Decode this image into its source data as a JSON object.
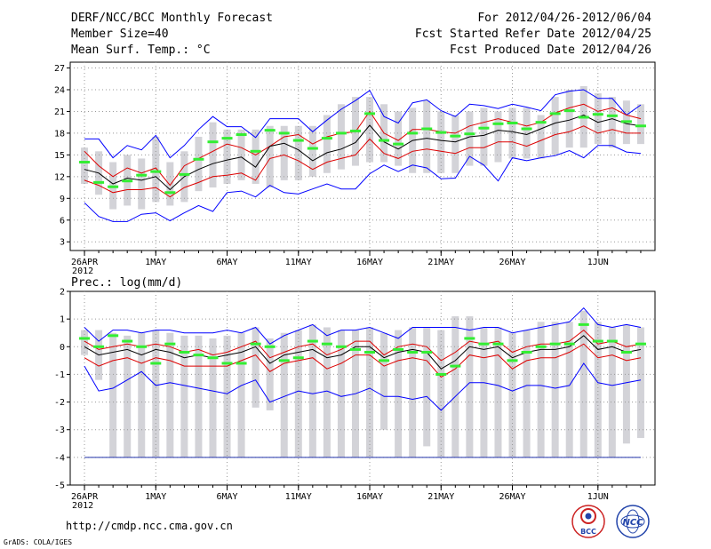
{
  "header": {
    "title": "DERF/NCC/BCC Monthly Forecast",
    "member_size": "Member Size=40",
    "variable": "Mean Surf. Temp.: °C",
    "period": "For 2012/04/26-2012/06/04",
    "start_date": "Fcst Started Refer Date 2012/04/25",
    "produced_date": "Fcst Produced Date 2012/04/26"
  },
  "footer": {
    "url": "http://cmdp.ncc.cma.gov.cn",
    "credit": "GrADS: COLA/IGES",
    "logo1_text": "BCC",
    "logo2_text": "NCC"
  },
  "colors": {
    "max_min": "#0000ff",
    "spread": "#dd0000",
    "mean": "#000000",
    "members_bar": "#d3d3d8",
    "median": "#33ee33",
    "grid": "#999999"
  },
  "chart_data": [
    {
      "type": "line",
      "title": "Mean Surf. Temp.: °C",
      "x_ticks": [
        {
          "day": 0,
          "label": "26APR"
        },
        {
          "day": 5,
          "label": "1MAY"
        },
        {
          "day": 10,
          "label": "6MAY"
        },
        {
          "day": 15,
          "label": "11MAY"
        },
        {
          "day": 20,
          "label": "16MAY"
        },
        {
          "day": 25,
          "label": "21MAY"
        },
        {
          "day": 30,
          "label": "26MAY"
        },
        {
          "day": 36,
          "label": "1JUN"
        }
      ],
      "year_label": "2012",
      "xlim": [
        -1,
        40
      ],
      "ylim": [
        1.8,
        27.8
      ],
      "y_ticks": [
        3,
        6,
        9,
        12,
        15,
        18,
        21,
        24,
        27
      ],
      "y_labels": [
        "3",
        "6",
        "9",
        "12",
        "15",
        "18",
        "21",
        "24",
        "27"
      ],
      "days": [
        0,
        1,
        2,
        3,
        4,
        5,
        6,
        7,
        8,
        9,
        10,
        11,
        12,
        13,
        14,
        15,
        16,
        17,
        18,
        19,
        20,
        21,
        22,
        23,
        24,
        25,
        26,
        27,
        28,
        29,
        30,
        31,
        32,
        33,
        34,
        35,
        36,
        37,
        38,
        39
      ],
      "series": [
        {
          "name": "max",
          "color_key": "max_min",
          "values": [
            17.2,
            17.2,
            14.6,
            16.3,
            15.7,
            17.7,
            14.6,
            16.3,
            18.5,
            20.3,
            18.9,
            18.9,
            17.4,
            20.0,
            20.0,
            20.0,
            18.2,
            19.8,
            21.3,
            22.5,
            23.9,
            20.3,
            19.4,
            22.2,
            22.6,
            21.1,
            20.3,
            22.0,
            21.8,
            21.4,
            22.0,
            21.6,
            21.1,
            23.3,
            23.8,
            24.0,
            22.8,
            22.8,
            20.5,
            21.9
          ]
        },
        {
          "name": "spread_upper",
          "color_key": "spread",
          "values": [
            15.5,
            13.5,
            12.0,
            13.2,
            12.5,
            13.2,
            10.8,
            13.5,
            14.5,
            15.5,
            16.5,
            16.0,
            15.0,
            16.2,
            17.5,
            17.8,
            16.5,
            17.5,
            18.0,
            18.2,
            21.0,
            18.0,
            17.0,
            18.5,
            18.5,
            18.2,
            18.0,
            19.0,
            19.5,
            20.0,
            19.5,
            19.0,
            19.5,
            20.8,
            21.5,
            22.0,
            21.0,
            21.5,
            20.5,
            20.0
          ]
        },
        {
          "name": "mean",
          "color_key": "mean",
          "values": [
            13.0,
            12.5,
            11.0,
            11.8,
            11.5,
            12.0,
            10.2,
            12.0,
            13.0,
            13.8,
            14.3,
            14.7,
            13.3,
            16.2,
            16.6,
            15.7,
            14.2,
            15.3,
            15.8,
            16.7,
            19.1,
            16.8,
            15.8,
            17.0,
            17.3,
            17.0,
            16.8,
            17.5,
            17.7,
            18.4,
            18.2,
            17.8,
            18.6,
            19.4,
            19.8,
            20.5,
            19.5,
            20.0,
            19.3,
            19.0
          ]
        },
        {
          "name": "spread_lower",
          "color_key": "spread",
          "values": [
            11.5,
            10.8,
            9.8,
            10.2,
            10.2,
            10.5,
            9.2,
            10.5,
            11.2,
            12.0,
            12.2,
            12.5,
            11.5,
            14.5,
            15.0,
            14.2,
            13.0,
            14.0,
            14.5,
            15.0,
            17.2,
            15.2,
            14.5,
            15.5,
            15.8,
            15.5,
            15.2,
            16.0,
            16.0,
            16.8,
            16.8,
            16.2,
            17.0,
            17.8,
            18.2,
            19.0,
            18.0,
            18.5,
            18.0,
            18.0
          ]
        },
        {
          "name": "min",
          "color_key": "max_min",
          "values": [
            8.4,
            6.5,
            5.8,
            5.8,
            6.8,
            7.0,
            5.9,
            7.0,
            8.0,
            7.2,
            9.8,
            10.0,
            9.2,
            10.8,
            9.8,
            9.6,
            10.3,
            11.0,
            10.3,
            10.3,
            12.4,
            13.6,
            12.7,
            13.6,
            13.2,
            11.7,
            11.8,
            14.8,
            13.6,
            11.4,
            14.6,
            14.2,
            14.6,
            14.9,
            15.6,
            14.6,
            16.3,
            16.3,
            15.4,
            15.2
          ]
        }
      ],
      "bars_low": [
        11.0,
        9.5,
        7.5,
        8.0,
        7.5,
        8.5,
        8.0,
        8.5,
        10.0,
        10.5,
        11.0,
        11.5,
        11.0,
        10.5,
        11.5,
        11.5,
        12.0,
        12.5,
        13.0,
        13.5,
        14.0,
        14.0,
        13.5,
        12.5,
        12.5,
        12.5,
        12.5,
        13.5,
        13.5,
        14.0,
        14.5,
        14.5,
        14.5,
        15.0,
        16.0,
        16.0,
        16.5,
        16.0,
        16.5,
        16.5
      ],
      "bars_high": [
        16.0,
        15.5,
        14.0,
        15.0,
        14.5,
        17.5,
        14.0,
        15.5,
        17.5,
        19.5,
        18.5,
        18.5,
        18.5,
        19.0,
        19.0,
        19.0,
        19.0,
        20.5,
        22.0,
        23.0,
        23.0,
        22.0,
        21.0,
        21.5,
        22.5,
        21.0,
        20.5,
        21.0,
        21.5,
        21.0,
        21.5,
        21.5,
        20.5,
        23.0,
        24.0,
        24.5,
        23.5,
        23.0,
        22.5,
        22.0
      ],
      "median": [
        14.0,
        11.2,
        10.6,
        11.4,
        12.2,
        12.7,
        9.8,
        12.3,
        14.4,
        16.8,
        17.3,
        17.8,
        15.5,
        18.4,
        18.0,
        17.0,
        15.9,
        17.3,
        18.0,
        18.3,
        20.7,
        17.0,
        16.5,
        18.0,
        18.6,
        18.1,
        17.6,
        17.9,
        18.7,
        19.3,
        19.4,
        18.6,
        19.5,
        20.7,
        21.1,
        20.2,
        20.6,
        20.4,
        19.6,
        19.0
      ]
    },
    {
      "type": "line",
      "title": "Prec.: log(mm/d)",
      "x_ticks": [
        {
          "day": 0,
          "label": "26APR"
        },
        {
          "day": 5,
          "label": "1MAY"
        },
        {
          "day": 10,
          "label": "6MAY"
        },
        {
          "day": 15,
          "label": "11MAY"
        },
        {
          "day": 20,
          "label": "16MAY"
        },
        {
          "day": 25,
          "label": "21MAY"
        },
        {
          "day": 30,
          "label": "26MAY"
        },
        {
          "day": 36,
          "label": "1JUN"
        }
      ],
      "year_label": "2012",
      "xlim": [
        -1,
        40
      ],
      "ylim": [
        -5,
        2
      ],
      "y_ticks": [
        -5,
        -4,
        -3,
        -2,
        -1,
        0,
        1,
        2
      ],
      "y_labels": [
        "-5",
        "-4",
        "-3",
        "-2",
        "-1",
        "0",
        "1",
        "2"
      ],
      "days": [
        0,
        1,
        2,
        3,
        4,
        5,
        6,
        7,
        8,
        9,
        10,
        11,
        12,
        13,
        14,
        15,
        16,
        17,
        18,
        19,
        20,
        21,
        22,
        23,
        24,
        25,
        26,
        27,
        28,
        29,
        30,
        31,
        32,
        33,
        34,
        35,
        36,
        37,
        38,
        39
      ],
      "floor_line": -4,
      "series": [
        {
          "name": "max",
          "color_key": "max_min",
          "values": [
            0.7,
            0.2,
            0.6,
            0.6,
            0.5,
            0.6,
            0.6,
            0.5,
            0.5,
            0.5,
            0.6,
            0.5,
            0.7,
            0.1,
            0.4,
            0.6,
            0.8,
            0.4,
            0.6,
            0.6,
            0.7,
            0.5,
            0.3,
            0.7,
            0.7,
            0.7,
            0.7,
            0.6,
            0.7,
            0.7,
            0.5,
            0.6,
            0.7,
            0.8,
            0.9,
            1.4,
            0.8,
            0.7,
            0.8,
            0.7
          ]
        },
        {
          "name": "spread_upper",
          "color_key": "spread",
          "values": [
            0.2,
            -0.1,
            0.0,
            0.1,
            0.0,
            0.1,
            0.0,
            -0.2,
            -0.1,
            -0.3,
            -0.2,
            0.0,
            0.2,
            -0.4,
            -0.2,
            0.0,
            0.1,
            -0.3,
            -0.1,
            0.2,
            0.2,
            -0.3,
            0.0,
            0.1,
            0.0,
            -0.5,
            -0.2,
            0.2,
            0.1,
            0.2,
            -0.2,
            0.0,
            0.1,
            0.1,
            0.2,
            0.6,
            0.1,
            0.2,
            0.0,
            0.1
          ]
        },
        {
          "name": "mean",
          "color_key": "mean",
          "values": [
            0.0,
            -0.3,
            -0.2,
            -0.1,
            -0.3,
            -0.1,
            -0.2,
            -0.4,
            -0.3,
            -0.4,
            -0.3,
            -0.2,
            0.0,
            -0.6,
            -0.3,
            -0.2,
            -0.1,
            -0.4,
            -0.3,
            0.0,
            0.0,
            -0.4,
            -0.2,
            -0.1,
            -0.2,
            -0.8,
            -0.5,
            0.0,
            -0.1,
            0.0,
            -0.4,
            -0.2,
            -0.1,
            -0.1,
            0.0,
            0.4,
            -0.1,
            0.0,
            -0.2,
            -0.1
          ]
        },
        {
          "name": "spread_lower",
          "color_key": "spread",
          "values": [
            -0.4,
            -0.7,
            -0.5,
            -0.4,
            -0.6,
            -0.4,
            -0.5,
            -0.7,
            -0.7,
            -0.7,
            -0.7,
            -0.5,
            -0.3,
            -0.9,
            -0.6,
            -0.5,
            -0.4,
            -0.8,
            -0.6,
            -0.3,
            -0.3,
            -0.7,
            -0.5,
            -0.4,
            -0.5,
            -1.1,
            -0.8,
            -0.3,
            -0.4,
            -0.3,
            -0.8,
            -0.5,
            -0.4,
            -0.4,
            -0.2,
            0.1,
            -0.4,
            -0.3,
            -0.5,
            -0.4
          ]
        },
        {
          "name": "min",
          "color_key": "max_min",
          "values": [
            -0.7,
            -1.6,
            -1.5,
            -1.2,
            -0.9,
            -1.4,
            -1.3,
            -1.4,
            -1.5,
            -1.6,
            -1.7,
            -1.4,
            -1.2,
            -2.0,
            -1.8,
            -1.6,
            -1.7,
            -1.6,
            -1.8,
            -1.7,
            -1.5,
            -1.8,
            -1.8,
            -1.9,
            -1.8,
            -2.3,
            -1.8,
            -1.3,
            -1.3,
            -1.4,
            -1.6,
            -1.4,
            -1.4,
            -1.5,
            -1.4,
            -0.6,
            -1.3,
            -1.4,
            -1.3,
            -1.2
          ]
        }
      ],
      "bars_low": [
        -0.3,
        -1.2,
        -4.0,
        -4.0,
        -4.0,
        -4.0,
        -4.0,
        -4.0,
        -4.0,
        -4.0,
        -4.0,
        -4.0,
        -2.2,
        -2.3,
        -4.0,
        -4.0,
        -4.0,
        -4.0,
        -4.0,
        -4.0,
        -4.0,
        -3.0,
        -4.0,
        -4.0,
        -3.6,
        -4.0,
        -4.0,
        -4.0,
        -4.0,
        -4.0,
        -4.0,
        -4.0,
        -4.0,
        -4.0,
        -4.0,
        -4.0,
        -4.0,
        -4.0,
        -3.5,
        -3.3
      ],
      "bars_high": [
        0.6,
        0.6,
        0.5,
        0.4,
        0.5,
        0.6,
        0.5,
        0.4,
        0.4,
        0.3,
        0.4,
        0.5,
        0.7,
        0.3,
        0.5,
        0.6,
        0.8,
        0.7,
        0.6,
        0.6,
        0.7,
        0.5,
        0.6,
        0.7,
        0.7,
        0.6,
        1.1,
        1.1,
        0.7,
        0.7,
        0.5,
        0.6,
        0.9,
        0.9,
        0.9,
        1.3,
        0.9,
        0.7,
        0.8,
        0.7
      ],
      "median": [
        0.3,
        0.0,
        0.4,
        0.2,
        0.0,
        -0.6,
        0.1,
        -0.2,
        -0.3,
        -0.4,
        -0.6,
        -0.6,
        0.1,
        0.0,
        -0.5,
        -0.4,
        0.2,
        0.1,
        0.0,
        -0.1,
        -0.2,
        -0.5,
        -0.1,
        -0.2,
        -0.2,
        -1.0,
        -0.7,
        0.3,
        0.1,
        0.1,
        -0.5,
        -0.2,
        0.0,
        0.1,
        0.1,
        0.8,
        0.2,
        0.2,
        -0.2,
        0.1
      ]
    }
  ]
}
